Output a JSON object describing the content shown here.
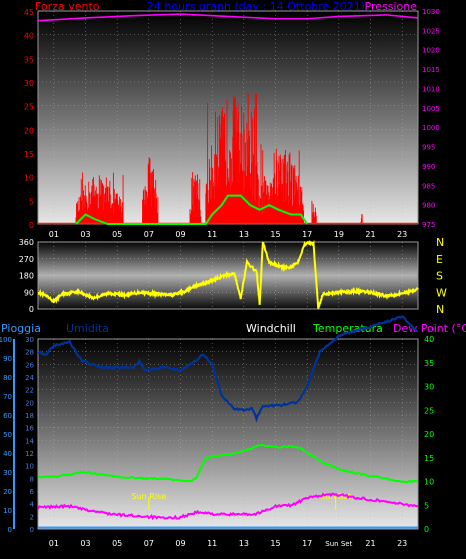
{
  "chart_data": [
    {
      "type": "bar",
      "title": "24 hours graph (day : 14 Ottobre 2021)",
      "left_label": "Forza vento",
      "right_label": "Pressione",
      "ylim_left": [
        0,
        45
      ],
      "yticks_left": [
        "0",
        "5",
        "10",
        "15",
        "20",
        "25",
        "30",
        "35",
        "40",
        "45"
      ],
      "ylim_right": [
        975,
        1030
      ],
      "yticks_right": [
        "975",
        "980",
        "985",
        "990",
        "995",
        "1000",
        "1005",
        "1010",
        "1015",
        "1020",
        "1025",
        "1030"
      ],
      "xticks": [
        "01",
        "03",
        "05",
        "07",
        "09",
        "11",
        "13",
        "15",
        "17",
        "19",
        "21",
        "23"
      ],
      "gust_bursts": [
        {
          "from": 2.4,
          "to": 5.4,
          "peak": 11
        },
        {
          "from": 6.6,
          "to": 7.6,
          "peak": 15
        },
        {
          "from": 9.6,
          "to": 10.3,
          "peak": 11
        },
        {
          "from": 10.6,
          "to": 14.0,
          "peak": 28
        },
        {
          "from": 14.0,
          "to": 16.8,
          "peak": 17
        },
        {
          "from": 17.3,
          "to": 17.6,
          "peak": 5
        },
        {
          "from": 20.4,
          "to": 20.5,
          "peak": 4
        }
      ],
      "wind_avg": [
        [
          2.4,
          0
        ],
        [
          3.0,
          2
        ],
        [
          3.6,
          1
        ],
        [
          4.4,
          0
        ],
        [
          10.6,
          0
        ],
        [
          11.0,
          2
        ],
        [
          11.6,
          4
        ],
        [
          12.0,
          6
        ],
        [
          12.8,
          6
        ],
        [
          13.4,
          4
        ],
        [
          14.0,
          3
        ],
        [
          14.6,
          4
        ],
        [
          15.2,
          3
        ],
        [
          16.0,
          2
        ],
        [
          16.6,
          2
        ],
        [
          17.0,
          0
        ]
      ],
      "pressure": [
        [
          0,
          1027.5
        ],
        [
          3,
          1028.2
        ],
        [
          6,
          1028.8
        ],
        [
          9,
          1029.2
        ],
        [
          12,
          1028.6
        ],
        [
          15,
          1028.0
        ],
        [
          17,
          1028.0
        ],
        [
          19,
          1028.6
        ],
        [
          22,
          1029.0
        ],
        [
          24,
          1028.2
        ]
      ],
      "colors": {
        "gust": "#ff0000",
        "avg": "#00ff00",
        "pressure": "#ff00ff",
        "title": "#0000ff",
        "left": "#ff0000"
      }
    },
    {
      "type": "line",
      "ylim": [
        0,
        360
      ],
      "yticks": [
        "0",
        "90",
        "180",
        "270",
        "360"
      ],
      "compass": [
        "N",
        "W",
        "S",
        "E",
        "N"
      ],
      "direction": [
        [
          0,
          90
        ],
        [
          0.5,
          70
        ],
        [
          1.0,
          40
        ],
        [
          1.5,
          80
        ],
        [
          2.5,
          95
        ],
        [
          3.5,
          60
        ],
        [
          4.5,
          85
        ],
        [
          5.5,
          75
        ],
        [
          6.5,
          90
        ],
        [
          7.5,
          80
        ],
        [
          8.5,
          75
        ],
        [
          9.3,
          95
        ],
        [
          10.0,
          125
        ],
        [
          10.6,
          140
        ],
        [
          11.2,
          160
        ],
        [
          11.8,
          180
        ],
        [
          12.4,
          190
        ],
        [
          12.8,
          60
        ],
        [
          13.2,
          250
        ],
        [
          13.8,
          200
        ],
        [
          14.0,
          25
        ],
        [
          14.2,
          360
        ],
        [
          14.6,
          250
        ],
        [
          15.2,
          230
        ],
        [
          15.8,
          220
        ],
        [
          16.4,
          250
        ],
        [
          16.8,
          340
        ],
        [
          17.0,
          360
        ],
        [
          17.4,
          350
        ],
        [
          17.7,
          5
        ],
        [
          18.0,
          80
        ],
        [
          19,
          90
        ],
        [
          20,
          95
        ],
        [
          21,
          90
        ],
        [
          22,
          70
        ],
        [
          23,
          85
        ],
        [
          24,
          105
        ]
      ],
      "color": "#ffff00"
    },
    {
      "type": "line",
      "labels": {
        "rain": "Pioggia",
        "humidity": "Umidita",
        "windchill": "Windchill",
        "temperature": "Temperatura",
        "dewpoint": "Dew Point (°C)"
      },
      "ylim_rain": [
        0,
        100
      ],
      "yticks_rain": [
        "0",
        "10",
        "20",
        "30",
        "40",
        "50",
        "60",
        "70",
        "80",
        "90",
        "100"
      ],
      "ylim_humidity": [
        0,
        30
      ],
      "yticks_humidity": [
        "0",
        "2",
        "4",
        "6",
        "8",
        "10",
        "12",
        "14",
        "16",
        "18",
        "20",
        "22",
        "24",
        "26",
        "28",
        "30"
      ],
      "ylim_right": [
        0,
        40
      ],
      "yticks_right": [
        "0",
        "5",
        "10",
        "15",
        "20",
        "25",
        "30",
        "35",
        "40"
      ],
      "xticks": [
        "01",
        "03",
        "05",
        "07",
        "09",
        "11",
        "13",
        "15",
        "17",
        "Sun Set",
        "21",
        "23"
      ],
      "sun_rise": {
        "label": "Sun Rise",
        "x": 7.0
      },
      "sun_set": {
        "label": "Sun Set",
        "x": 18.8
      },
      "humidity_curve": [
        [
          0,
          28
        ],
        [
          0.5,
          27.5
        ],
        [
          1.0,
          29
        ],
        [
          2.0,
          29.5
        ],
        [
          2.8,
          26.5
        ],
        [
          4,
          25.5
        ],
        [
          5,
          25.5
        ],
        [
          6,
          25.5
        ],
        [
          6.4,
          26.5
        ],
        [
          6.8,
          25
        ],
        [
          8,
          25.5
        ],
        [
          9,
          25
        ],
        [
          9.6,
          26
        ],
        [
          10.4,
          27.5
        ],
        [
          11,
          26
        ],
        [
          11.6,
          21
        ],
        [
          12.4,
          19
        ],
        [
          13.0,
          18.8
        ],
        [
          13.5,
          19
        ],
        [
          13.8,
          17.5
        ],
        [
          14.2,
          19.5
        ],
        [
          15.2,
          19.5
        ],
        [
          16.4,
          20
        ],
        [
          17.0,
          22.5
        ],
        [
          17.8,
          28
        ],
        [
          19,
          30.5
        ],
        [
          21,
          32
        ],
        [
          23,
          33.5
        ],
        [
          24,
          31.2
        ]
      ],
      "temperature": [
        [
          0,
          11
        ],
        [
          1,
          11
        ],
        [
          2,
          11.5
        ],
        [
          3,
          12
        ],
        [
          4,
          11.5
        ],
        [
          5,
          11
        ],
        [
          6,
          10.8
        ],
        [
          7,
          10.6
        ],
        [
          8,
          10.6
        ],
        [
          9,
          10.2
        ],
        [
          9.6,
          10.0
        ],
        [
          10,
          10.8
        ],
        [
          10.6,
          15
        ],
        [
          11.5,
          15.5
        ],
        [
          12.5,
          16
        ],
        [
          13.5,
          17
        ],
        [
          14,
          17.8
        ],
        [
          15,
          17.2
        ],
        [
          16,
          17.4
        ],
        [
          16.6,
          17.2
        ],
        [
          17,
          16
        ],
        [
          18,
          14
        ],
        [
          19,
          12.6
        ],
        [
          20,
          11.8
        ],
        [
          21,
          11.2
        ],
        [
          22,
          10.6
        ],
        [
          23,
          10.0
        ],
        [
          24,
          10
        ]
      ],
      "dewpoint": [
        [
          0,
          4.5
        ],
        [
          1,
          4.7
        ],
        [
          2,
          4.8
        ],
        [
          3,
          4.0
        ],
        [
          4,
          3.5
        ],
        [
          5,
          3.0
        ],
        [
          6,
          2.8
        ],
        [
          7,
          2.6
        ],
        [
          8,
          2.2
        ],
        [
          9,
          2.5
        ],
        [
          10,
          3.5
        ],
        [
          11,
          3.2
        ],
        [
          12,
          3.0
        ],
        [
          13,
          3.3
        ],
        [
          13.5,
          3.0
        ],
        [
          14,
          3.4
        ],
        [
          15,
          4.8
        ],
        [
          16,
          5.0
        ],
        [
          17,
          6.5
        ],
        [
          18,
          7.2
        ],
        [
          19,
          7.2
        ],
        [
          20,
          6.6
        ],
        [
          21,
          6.2
        ],
        [
          22,
          5.8
        ],
        [
          23,
          5.2
        ],
        [
          24,
          4.9
        ]
      ],
      "colors": {
        "rain": "#3399ff",
        "humidity": "#003399",
        "windchill": "#ffffff",
        "temperature": "#00ff00",
        "dewpoint": "#ff00ff"
      }
    }
  ]
}
